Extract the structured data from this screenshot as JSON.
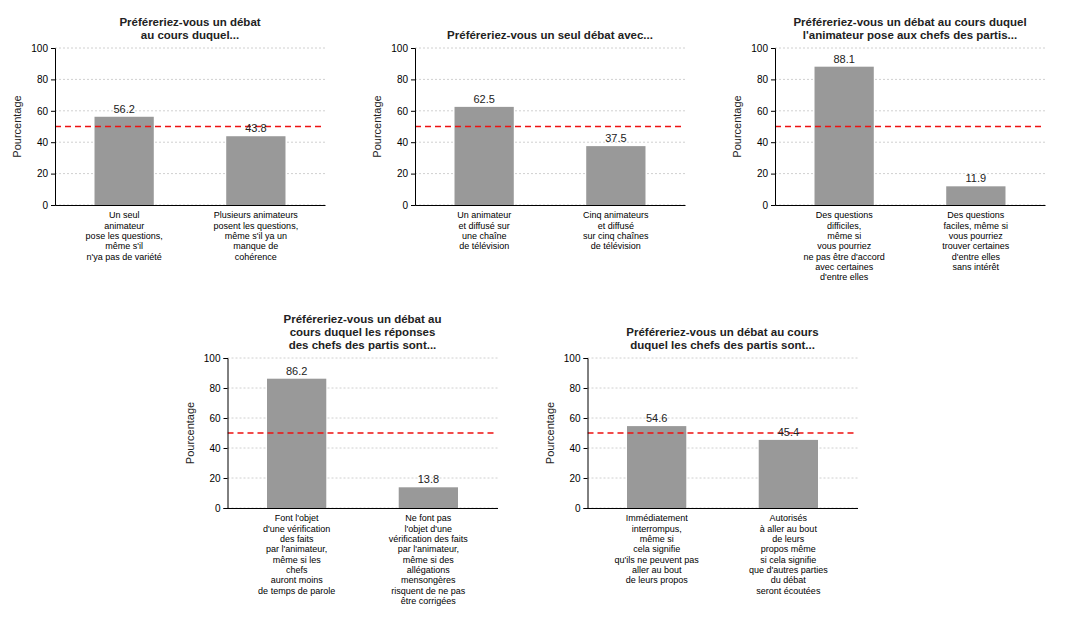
{
  "chart_data": [
    {
      "type": "bar",
      "title": "Préféreriez-vous un débat\nau cours duquel...",
      "categories": [
        "Un seul\nanimateur\npose les questions,\nmême s'il\nn'ya pas de variété",
        "Plusieurs animateurs\nposent les questions,\nmême s'il ya un\nmanque de\ncohérence"
      ],
      "values": [
        56.2,
        43.8
      ],
      "color": "#999999",
      "ylabel": "Pourcentage",
      "ylim": [
        0,
        100
      ],
      "yticks": [
        0,
        20,
        40,
        60,
        80,
        100
      ],
      "grid": true,
      "data_labels": true,
      "reference_line": {
        "value": 50,
        "color": "#ee1111",
        "line_style": "dashed"
      }
    },
    {
      "type": "bar",
      "title": "Préféreriez-vous un seul débat avec...",
      "categories": [
        "Un animateur\net diffusé sur\nune chaîne\nde télévision",
        "Cinq animateurs\net diffusé\nsur cinq chaînes\nde télévision"
      ],
      "values": [
        62.5,
        37.5
      ],
      "color": "#999999",
      "ylabel": "Pourcentage",
      "ylim": [
        0,
        100
      ],
      "yticks": [
        0,
        20,
        40,
        60,
        80,
        100
      ],
      "grid": true,
      "data_labels": true,
      "reference_line": {
        "value": 50,
        "color": "#ee1111",
        "line_style": "dashed"
      }
    },
    {
      "type": "bar",
      "title": "Préféreriez-vous un débat au cours duquel\nl'animateur pose aux chefs des partis...",
      "categories": [
        "Des questions\ndifficiles,\nmême si\nvous pourriez\nne pas être d'accord\navec certaines\nd'entre elles",
        "Des questions\nfaciles, même si\nvous pourriez\ntrouver certaines\nd'entre elles\nsans intérêt"
      ],
      "values": [
        88.1,
        11.9
      ],
      "color": "#999999",
      "ylabel": "Pourcentage",
      "ylim": [
        0,
        100
      ],
      "yticks": [
        0,
        20,
        40,
        60,
        80,
        100
      ],
      "grid": true,
      "data_labels": true,
      "reference_line": {
        "value": 50,
        "color": "#ee1111",
        "line_style": "dashed"
      }
    },
    {
      "type": "bar",
      "title": "Préféreriez-vous un débat au\ncours duquel les réponses\ndes chefs des partis sont...",
      "categories": [
        "Font l'objet\nd'une vérification\ndes faits\npar l'animateur,\nmême si les\nchefs\nauront moins\nde temps de parole",
        "Ne font pas\nl'objet d'une\nvérification des faits\npar l'animateur,\nmême si des\nallégations\nmensongères\nrisquent de ne pas\nêtre corrigées"
      ],
      "values": [
        86.2,
        13.8
      ],
      "color": "#999999",
      "ylabel": "Pourcentage",
      "ylim": [
        0,
        100
      ],
      "yticks": [
        0,
        20,
        40,
        60,
        80,
        100
      ],
      "grid": true,
      "data_labels": true,
      "reference_line": {
        "value": 50,
        "color": "#ee1111",
        "line_style": "dashed"
      }
    },
    {
      "type": "bar",
      "title": "Préféreriez-vous un débat au cours\nduquel les chefs des partis sont...",
      "categories": [
        "Immédiatement\ninterrompus,\nmême si\ncela signifie\nqu'ils ne peuvent pas\naller au bout\nde leurs propos",
        "Autorisés\nà aller au bout\nde leurs\npropos même\nsi cela signifie\nque d'autres parties\ndu débat\nseront écoutées"
      ],
      "values": [
        54.6,
        45.4
      ],
      "color": "#999999",
      "ylabel": "Pourcentage",
      "ylim": [
        0,
        100
      ],
      "yticks": [
        0,
        20,
        40,
        60,
        80,
        100
      ],
      "grid": true,
      "data_labels": true,
      "reference_line": {
        "value": 50,
        "color": "#ee1111",
        "line_style": "dashed"
      }
    }
  ]
}
